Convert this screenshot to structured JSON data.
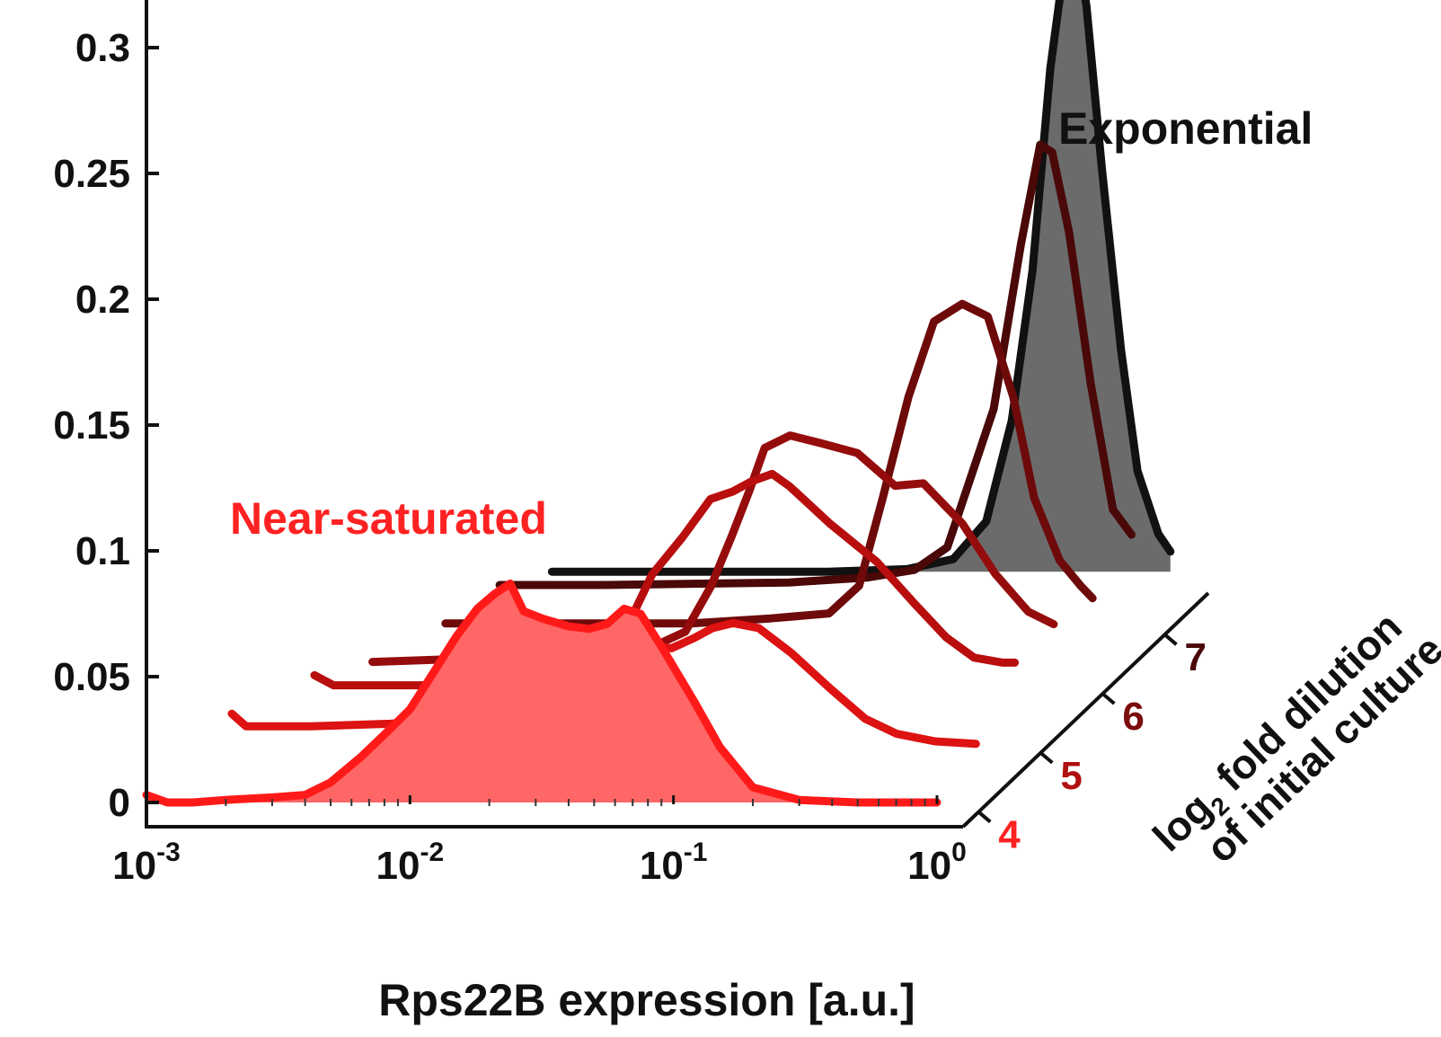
{
  "chart_data": {
    "type": "line",
    "subtype": "3d-waterfall-histogram",
    "xlabel": "Rps22B expression [a.u.]",
    "xscale": "log",
    "xlim": [
      0.001,
      1
    ],
    "xticks": [
      {
        "value": 0.001,
        "base": "10",
        "exp": "-3"
      },
      {
        "value": 0.01,
        "base": "10",
        "exp": "-2"
      },
      {
        "value": 0.1,
        "base": "10",
        "exp": "-1"
      },
      {
        "value": 1,
        "base": "10",
        "exp": "0"
      }
    ],
    "ylim": [
      0,
      0.32
    ],
    "yticks": [
      "0",
      "0.05",
      "0.1",
      "0.15",
      "0.2",
      "0.25",
      "0.3"
    ],
    "yticks_values": [
      0,
      0.05,
      0.1,
      0.15,
      0.2,
      0.25,
      0.3
    ],
    "zlabel_line1": "log",
    "zlabel_sub": "2",
    "zlabel_line1_rest": " fold dilution",
    "zlabel_line2": "of initial culture",
    "zticks": [
      {
        "label": "4",
        "color": "#ff2222"
      },
      {
        "label": "5",
        "color": "#b01010"
      },
      {
        "label": "6",
        "color": "#7a0c0c"
      },
      {
        "label": "7",
        "color": "#4a0808"
      }
    ],
    "annotations": {
      "near_saturated": {
        "text": "Near-saturated",
        "color": "#ff2222"
      },
      "exponential": {
        "text": "Exponential",
        "color": "#111111"
      }
    },
    "series": [
      {
        "depth": 0,
        "color": "#ff1a1a",
        "fill": "#ff6666",
        "x": [
          0.001,
          0.0012,
          0.0015,
          0.002,
          0.003,
          0.004,
          0.005,
          0.0065,
          0.008,
          0.01,
          0.012,
          0.015,
          0.018,
          0.021,
          0.024,
          0.027,
          0.032,
          0.04,
          0.048,
          0.056,
          0.065,
          0.075,
          0.09,
          0.12,
          0.15,
          0.2,
          0.3,
          0.5,
          1.0
        ],
        "y": [
          0.003,
          0.0,
          0.0,
          0.001,
          0.002,
          0.003,
          0.008,
          0.018,
          0.027,
          0.037,
          0.05,
          0.066,
          0.077,
          0.083,
          0.087,
          0.076,
          0.073,
          0.07,
          0.069,
          0.071,
          0.077,
          0.075,
          0.062,
          0.04,
          0.022,
          0.006,
          0.001,
          0.0,
          0.0
        ]
      },
      {
        "depth": 1,
        "color": "#dd1212",
        "x": [
          0.0015,
          0.0017,
          0.003,
          0.006,
          0.008,
          0.01,
          0.013,
          0.017,
          0.022,
          0.03,
          0.038,
          0.045,
          0.052,
          0.06,
          0.07,
          0.085,
          0.1,
          0.12,
          0.15,
          0.2,
          0.28,
          0.38,
          0.5,
          0.7,
          1.0
        ],
        "y": [
          0.02,
          0.015,
          0.015,
          0.016,
          0.017,
          0.018,
          0.021,
          0.026,
          0.033,
          0.04,
          0.045,
          0.05,
          0.048,
          0.047,
          0.046,
          0.05,
          0.054,
          0.056,
          0.054,
          0.044,
          0.03,
          0.018,
          0.012,
          0.009,
          0.008
        ]
      },
      {
        "depth": 2,
        "color": "#b80e0e",
        "x": [
          0.0022,
          0.0026,
          0.005,
          0.01,
          0.015,
          0.022,
          0.032,
          0.042,
          0.055,
          0.07,
          0.085,
          0.1,
          0.12,
          0.14,
          0.2,
          0.3,
          0.42,
          0.55,
          0.7,
          0.9,
          1.0
        ],
        "y": [
          0.02,
          0.016,
          0.016,
          0.016,
          0.018,
          0.02,
          0.034,
          0.06,
          0.075,
          0.09,
          0.093,
          0.097,
          0.1,
          0.095,
          0.08,
          0.065,
          0.048,
          0.035,
          0.027,
          0.025,
          0.025
        ]
      },
      {
        "depth": 3,
        "color": "#950c0c",
        "x": [
          0.0026,
          0.005,
          0.01,
          0.02,
          0.03,
          0.04,
          0.05,
          0.06,
          0.07,
          0.08,
          0.1,
          0.13,
          0.18,
          0.25,
          0.32,
          0.45,
          0.6,
          0.8,
          1.0
        ],
        "y": [
          0.01,
          0.011,
          0.012,
          0.013,
          0.016,
          0.022,
          0.04,
          0.06,
          0.078,
          0.095,
          0.1,
          0.097,
          0.093,
          0.08,
          0.081,
          0.065,
          0.045,
          0.03,
          0.025
        ]
      },
      {
        "depth": 4,
        "color": "#6e0a0a",
        "x": [
          0.0035,
          0.01,
          0.03,
          0.06,
          0.1,
          0.13,
          0.16,
          0.2,
          0.25,
          0.32,
          0.4,
          0.5,
          0.6,
          0.75,
          0.9,
          1.0
        ],
        "y": [
          0.01,
          0.01,
          0.01,
          0.012,
          0.014,
          0.025,
          0.06,
          0.1,
          0.13,
          0.137,
          0.132,
          0.1,
          0.06,
          0.035,
          0.025,
          0.02
        ]
      },
      {
        "depth": 5,
        "color": "#4a0808",
        "x": [
          0.004,
          0.01,
          0.05,
          0.1,
          0.15,
          0.2,
          0.3,
          0.38,
          0.45,
          0.5,
          0.58,
          0.7,
          0.85,
          1.0
        ],
        "y": [
          0.01,
          0.01,
          0.011,
          0.013,
          0.016,
          0.025,
          0.08,
          0.145,
          0.185,
          0.182,
          0.15,
          0.09,
          0.04,
          0.03
        ]
      },
      {
        "depth": 6,
        "color": "#111111",
        "fill": "#6b6b6b",
        "x": [
          0.0045,
          0.01,
          0.05,
          0.1,
          0.15,
          0.2,
          0.25,
          0.3,
          0.35,
          0.4,
          0.44,
          0.48,
          0.55,
          0.65,
          0.75,
          0.9,
          1.0
        ],
        "y": [
          0.0,
          0.0,
          0.0,
          0.001,
          0.005,
          0.02,
          0.06,
          0.12,
          0.2,
          0.245,
          0.25,
          0.225,
          0.16,
          0.088,
          0.04,
          0.015,
          0.008
        ]
      }
    ]
  }
}
